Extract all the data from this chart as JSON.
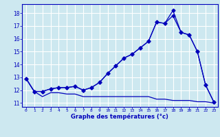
{
  "bg_color": "#cde8f0",
  "grid_color": "#ffffff",
  "line_color": "#0000bb",
  "xlabel": "Graphe des températures (°c)",
  "xlabel_color": "#0000bb",
  "tick_color": "#0000bb",
  "xlim": [
    -0.5,
    23.5
  ],
  "ylim": [
    10.7,
    18.7
  ],
  "yticks": [
    11,
    12,
    13,
    14,
    15,
    16,
    17,
    18
  ],
  "xticks": [
    0,
    1,
    2,
    3,
    4,
    5,
    6,
    7,
    8,
    9,
    10,
    11,
    12,
    13,
    14,
    15,
    16,
    17,
    18,
    19,
    20,
    21,
    22,
    23
  ],
  "series1_x": [
    0,
    1,
    2,
    3,
    4,
    5,
    6,
    7,
    8,
    9,
    10,
    11,
    12,
    13,
    14,
    15,
    16,
    17,
    18,
    19,
    20,
    21,
    22,
    23
  ],
  "series1_y": [
    12.9,
    11.9,
    11.5,
    11.8,
    11.8,
    11.7,
    11.7,
    11.5,
    11.5,
    11.5,
    11.5,
    11.5,
    11.5,
    11.5,
    11.5,
    11.5,
    11.3,
    11.3,
    11.2,
    11.2,
    11.2,
    11.1,
    11.1,
    11.0
  ],
  "series2_x": [
    0,
    1,
    2,
    3,
    4,
    5,
    6,
    7,
    8,
    9,
    10,
    11,
    12,
    13,
    14,
    15,
    16,
    17,
    18,
    19,
    20,
    21,
    22,
    23
  ],
  "series2_y": [
    12.9,
    11.9,
    11.9,
    12.1,
    12.2,
    12.2,
    12.3,
    12.0,
    12.2,
    12.6,
    13.3,
    13.9,
    14.5,
    14.8,
    15.3,
    15.8,
    17.3,
    17.2,
    17.8,
    16.5,
    16.3,
    15.0,
    12.4,
    11.1
  ],
  "series3_x": [
    0,
    1,
    2,
    3,
    4,
    5,
    6,
    7,
    8,
    9,
    10,
    11,
    12,
    13,
    14,
    15,
    16,
    17,
    18,
    19,
    20,
    21,
    22,
    23
  ],
  "series3_y": [
    12.9,
    11.9,
    11.9,
    12.1,
    12.2,
    12.2,
    12.3,
    12.0,
    12.2,
    12.6,
    13.3,
    13.9,
    14.5,
    14.8,
    15.3,
    15.8,
    17.3,
    17.2,
    18.2,
    16.5,
    16.3,
    15.0,
    12.4,
    11.1
  ],
  "marker_size": 2.5,
  "linewidth": 0.9
}
